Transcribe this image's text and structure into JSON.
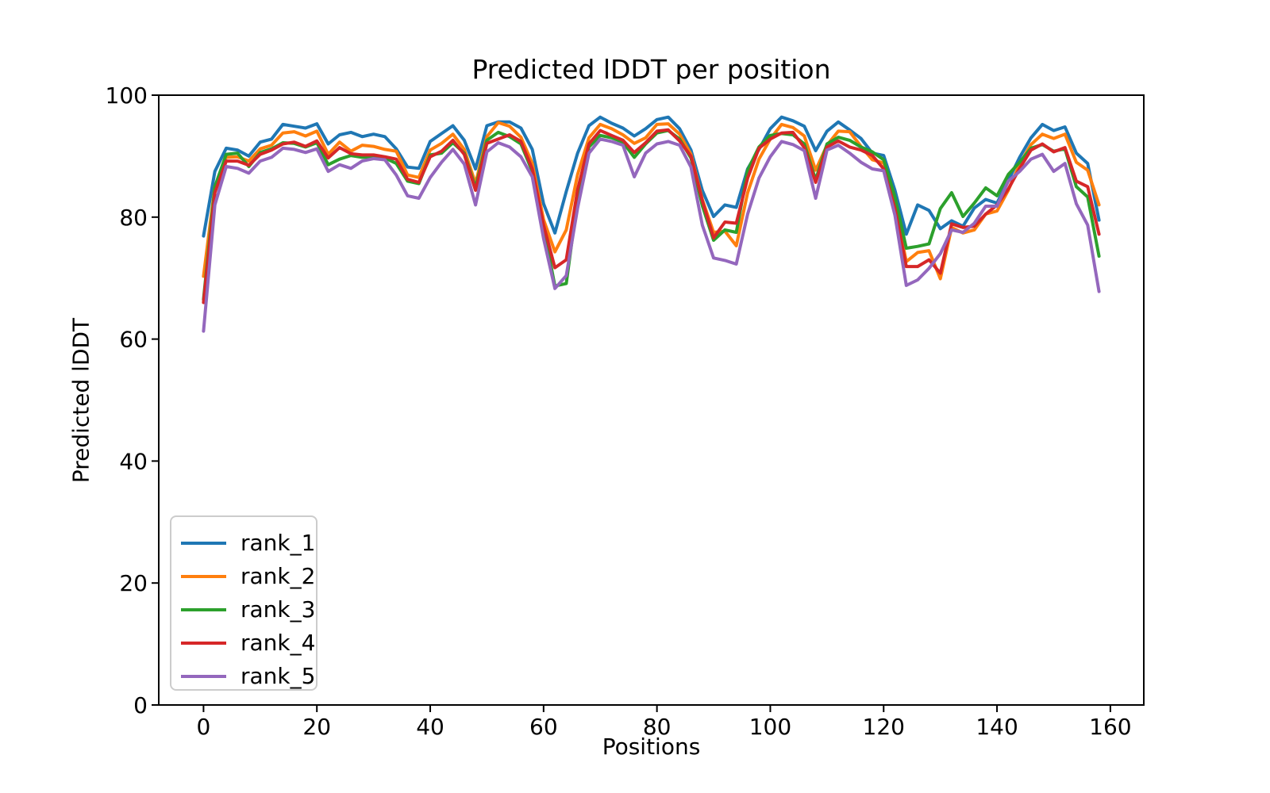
{
  "chart": {
    "title": "Predicted lDDT per position",
    "xlabel": "Positions",
    "ylabel": "Predicted lDDT"
  },
  "chart_data": {
    "type": "line",
    "title": "Predicted lDDT per position",
    "xlabel": "Positions",
    "ylabel": "Predicted lDDT",
    "xlim": [
      -7.9,
      165.9
    ],
    "ylim": [
      0,
      100
    ],
    "x_ticks": [
      0,
      20,
      40,
      60,
      80,
      100,
      120,
      140,
      160
    ],
    "y_ticks": [
      0,
      20,
      40,
      60,
      80,
      100
    ],
    "grid": false,
    "legend_position": "lower left",
    "x": [
      0,
      2,
      4,
      6,
      8,
      10,
      12,
      14,
      16,
      18,
      20,
      22,
      24,
      26,
      28,
      30,
      32,
      34,
      36,
      38,
      40,
      42,
      44,
      46,
      48,
      50,
      52,
      54,
      56,
      58,
      60,
      62,
      64,
      66,
      68,
      70,
      72,
      74,
      76,
      78,
      80,
      82,
      84,
      86,
      88,
      90,
      92,
      94,
      96,
      98,
      100,
      102,
      104,
      106,
      108,
      110,
      112,
      114,
      116,
      118,
      120,
      122,
      124,
      126,
      128,
      130,
      132,
      134,
      136,
      138,
      140,
      142,
      144,
      146,
      148,
      150,
      152,
      154,
      156,
      158
    ],
    "series": [
      {
        "name": "rank_1",
        "color": "#1f77b4",
        "values": [
          76.9,
          87.5,
          91.3,
          91.0,
          90.0,
          92.3,
          92.8,
          95.2,
          94.9,
          94.6,
          95.3,
          92.0,
          93.5,
          93.9,
          93.2,
          93.6,
          93.2,
          91.2,
          88.2,
          88.0,
          92.4,
          93.7,
          95.0,
          92.6,
          87.9,
          95.0,
          95.6,
          95.6,
          94.6,
          91.1,
          82.2,
          77.4,
          84.2,
          90.5,
          95.0,
          96.4,
          95.4,
          94.6,
          93.3,
          94.5,
          96.0,
          96.4,
          94.5,
          91.0,
          84.4,
          80.1,
          82.0,
          81.6,
          87.9,
          91.1,
          94.5,
          96.4,
          95.8,
          94.9,
          90.9,
          94.1,
          95.6,
          94.3,
          92.9,
          90.5,
          90.1,
          84.4,
          77.2,
          82.0,
          81.1,
          78.1,
          79.4,
          78.5,
          81.5,
          82.9,
          82.3,
          86.0,
          89.8,
          93.0,
          95.2,
          94.2,
          94.8,
          90.5,
          88.8,
          79.5
        ]
      },
      {
        "name": "rank_2",
        "color": "#ff7f0e",
        "values": [
          70.3,
          85.0,
          89.8,
          89.9,
          89.2,
          91.2,
          91.8,
          93.8,
          94.0,
          93.3,
          94.1,
          90.3,
          92.3,
          90.8,
          91.8,
          91.6,
          91.1,
          90.8,
          86.9,
          86.5,
          91.0,
          92.1,
          93.6,
          91.1,
          85.5,
          93.2,
          95.5,
          94.9,
          93.1,
          88.8,
          79.6,
          74.3,
          77.9,
          87.0,
          93.0,
          95.2,
          94.5,
          93.5,
          92.1,
          93.0,
          95.2,
          95.3,
          93.6,
          90.3,
          82.9,
          77.5,
          77.7,
          75.3,
          84.0,
          89.5,
          92.8,
          95.2,
          94.7,
          93.3,
          87.7,
          91.8,
          94.1,
          94.0,
          91.6,
          89.4,
          88.9,
          81.8,
          72.7,
          74.2,
          74.5,
          69.9,
          78.3,
          77.4,
          77.9,
          80.5,
          81.0,
          84.4,
          88.7,
          91.9,
          93.6,
          92.9,
          93.6,
          89.0,
          87.7,
          82.0
        ]
      },
      {
        "name": "rank_3",
        "color": "#2ca02c",
        "values": [
          66.5,
          85.0,
          90.3,
          90.5,
          88.3,
          90.6,
          91.2,
          92.2,
          92.1,
          91.5,
          92.2,
          88.6,
          89.5,
          90.1,
          89.8,
          89.9,
          89.7,
          88.8,
          85.9,
          85.5,
          90.2,
          90.5,
          92.2,
          90.5,
          84.8,
          92.6,
          93.9,
          93.2,
          92.0,
          87.5,
          78.3,
          68.7,
          69.1,
          83.0,
          91.5,
          93.4,
          93.0,
          92.3,
          89.8,
          92.0,
          93.8,
          94.2,
          92.8,
          89.7,
          81.9,
          76.2,
          77.9,
          77.5,
          87.7,
          91.5,
          93.4,
          93.7,
          93.5,
          92.0,
          86.1,
          92.0,
          93.1,
          92.6,
          91.5,
          90.7,
          89.4,
          83.3,
          74.9,
          75.2,
          75.6,
          81.4,
          84.0,
          80.1,
          82.3,
          84.8,
          83.5,
          87.0,
          89.0,
          91.3,
          91.9,
          90.8,
          91.2,
          85.0,
          83.3,
          73.6
        ]
      },
      {
        "name": "rank_4",
        "color": "#d62728",
        "values": [
          66.0,
          84.0,
          89.2,
          89.2,
          88.5,
          90.3,
          91.0,
          92.0,
          92.3,
          91.6,
          92.5,
          89.7,
          91.4,
          90.4,
          90.2,
          90.2,
          89.9,
          89.5,
          86.2,
          85.7,
          89.9,
          90.8,
          92.6,
          90.3,
          84.4,
          92.1,
          92.8,
          93.5,
          92.4,
          87.9,
          78.7,
          71.7,
          73.0,
          84.5,
          92.0,
          94.2,
          93.4,
          92.6,
          90.6,
          92.2,
          94.1,
          94.3,
          92.5,
          90.0,
          82.7,
          76.6,
          79.2,
          79.0,
          86.4,
          91.3,
          92.8,
          93.8,
          93.9,
          91.4,
          85.7,
          91.5,
          92.5,
          91.5,
          91.0,
          90.1,
          87.9,
          81.4,
          71.9,
          71.9,
          73.0,
          70.8,
          78.9,
          78.3,
          78.5,
          80.5,
          82.0,
          84.6,
          88.0,
          91.0,
          92.0,
          90.7,
          91.4,
          85.9,
          85.0,
          77.2
        ]
      },
      {
        "name": "rank_5",
        "color": "#9467bd",
        "values": [
          61.3,
          82.0,
          88.3,
          88.0,
          87.2,
          89.2,
          89.8,
          91.3,
          91.1,
          90.6,
          91.2,
          87.5,
          88.6,
          88.0,
          89.2,
          89.6,
          89.4,
          86.9,
          83.5,
          83.1,
          86.5,
          89.0,
          91.1,
          88.7,
          82.0,
          90.7,
          92.2,
          91.5,
          89.9,
          86.6,
          76.5,
          68.3,
          70.4,
          81.5,
          90.5,
          92.8,
          92.4,
          91.8,
          86.6,
          90.5,
          92.0,
          92.4,
          91.8,
          88.2,
          78.7,
          73.3,
          72.9,
          72.3,
          80.5,
          86.4,
          89.9,
          92.4,
          91.9,
          90.9,
          83.1,
          91.0,
          91.8,
          90.5,
          89.0,
          87.9,
          87.6,
          80.3,
          68.8,
          69.7,
          71.6,
          74.0,
          77.9,
          77.5,
          79.0,
          81.8,
          81.8,
          85.9,
          87.5,
          89.5,
          90.3,
          87.5,
          88.8,
          82.2,
          78.7,
          67.8
        ]
      }
    ]
  },
  "style": {
    "spine_color": "#000000",
    "tick_color": "#000000",
    "text_color": "#000000",
    "background": "#ffffff",
    "legend_border": "#cccccc"
  }
}
